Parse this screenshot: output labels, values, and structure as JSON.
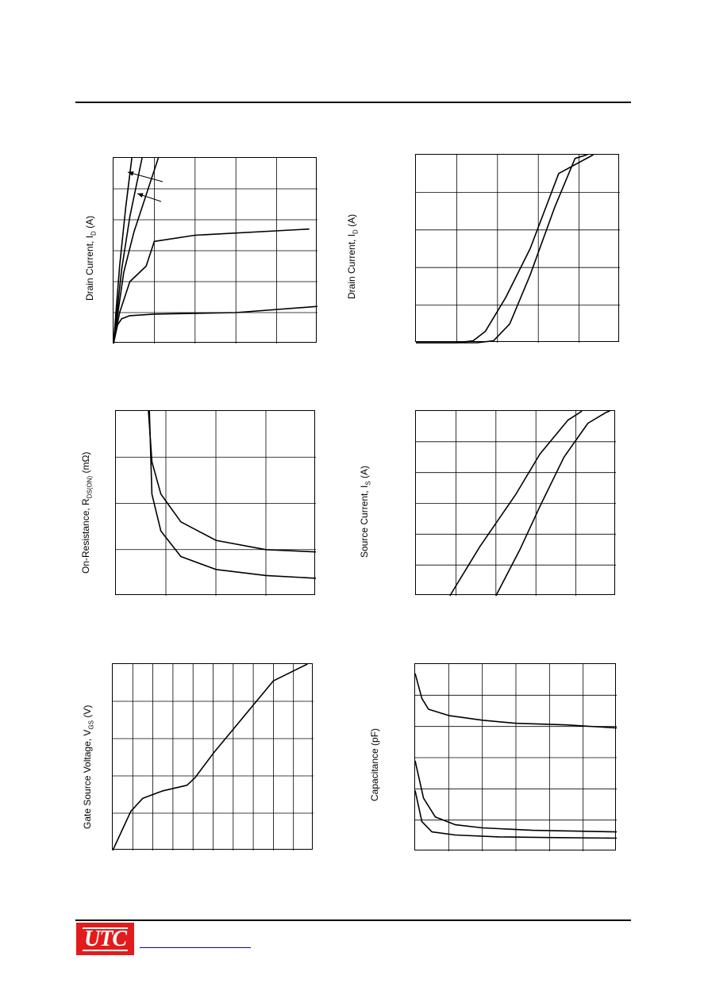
{
  "ylabels": {
    "p1": {
      "main": "Drain Current, I",
      "sub": "D",
      "tail": " (A)"
    },
    "p2": {
      "main": "Drain Current, I",
      "sub": "D",
      "tail": " (A)"
    },
    "p3": {
      "main": "On-Resistance, R",
      "sub": "DS(ON)",
      "tail": " (mΩ)"
    },
    "p4": {
      "main": "Source Current, I",
      "sub": "S",
      "tail": " (A)"
    },
    "p5": {
      "main": "Gate Source Voltage, V",
      "sub": "GS",
      "tail": " (V)"
    },
    "p6": {
      "main": "Capacitance (pF)",
      "sub": "",
      "tail": ""
    }
  },
  "chart_data": [
    {
      "type": "line",
      "ylabel": "Drain Current, ID (A)",
      "xlim": [
        0,
        5
      ],
      "ylim": [
        0,
        6
      ],
      "grid": true,
      "series": [
        {
          "points": [
            [
              0,
              0
            ],
            [
              0.1,
              0.6
            ],
            [
              0.2,
              0.8
            ],
            [
              0.4,
              0.9
            ],
            [
              1,
              0.95
            ],
            [
              3,
              1.0
            ],
            [
              5,
              1.2
            ]
          ]
        },
        {
          "points": [
            [
              0,
              0
            ],
            [
              0.15,
              1.0
            ],
            [
              0.4,
              2.0
            ],
            [
              0.8,
              2.5
            ],
            [
              1,
              3.3
            ],
            [
              2,
              3.5
            ],
            [
              4.8,
              3.7
            ]
          ]
        },
        {
          "points": [
            [
              0,
              0
            ],
            [
              0.25,
              2.3
            ],
            [
              0.5,
              3.6
            ],
            [
              0.8,
              4.8
            ],
            [
              1.1,
              6.0
            ]
          ]
        },
        {
          "points": [
            [
              0,
              0
            ],
            [
              0.2,
              2.4
            ],
            [
              0.4,
              4.1
            ],
            [
              0.7,
              6.0
            ]
          ]
        },
        {
          "points": [
            [
              0,
              0
            ],
            [
              0.15,
              2.5
            ],
            [
              0.3,
              4.4
            ],
            [
              0.45,
              6.0
            ]
          ]
        }
      ]
    },
    {
      "type": "line",
      "ylabel": "Drain Current, ID (A)",
      "xlim": [
        0,
        5
      ],
      "ylim": [
        0,
        5
      ],
      "grid": true,
      "series": [
        {
          "points": [
            [
              0,
              0
            ],
            [
              1,
              0
            ],
            [
              1.4,
              0.05
            ],
            [
              1.7,
              0.3
            ],
            [
              2.2,
              1.2
            ],
            [
              2.8,
              2.5
            ],
            [
              3.5,
              4.5
            ],
            [
              4.35,
              5.0
            ]
          ]
        },
        {
          "points": [
            [
              0,
              0
            ],
            [
              1.5,
              0
            ],
            [
              1.9,
              0.05
            ],
            [
              2.3,
              0.5
            ],
            [
              2.8,
              1.8
            ],
            [
              3.4,
              3.6
            ],
            [
              3.9,
              4.9
            ],
            [
              4.2,
              5.0
            ]
          ]
        }
      ]
    },
    {
      "type": "line",
      "ylabel": "On-Resistance, RDS(ON) (mΩ)",
      "xlim": [
        0,
        4
      ],
      "ylim": [
        0,
        4
      ],
      "grid": true,
      "series": [
        {
          "points": [
            [
              0.65,
              4.0
            ],
            [
              0.72,
              2.9
            ],
            [
              0.9,
              2.2
            ],
            [
              1.3,
              1.6
            ],
            [
              2,
              1.2
            ],
            [
              3,
              1.0
            ],
            [
              4,
              0.95
            ]
          ]
        },
        {
          "points": [
            [
              0.67,
              4.0
            ],
            [
              0.72,
              2.2
            ],
            [
              0.9,
              1.4
            ],
            [
              1.3,
              0.85
            ],
            [
              2,
              0.57
            ],
            [
              3,
              0.44
            ],
            [
              4,
              0.38
            ]
          ]
        }
      ]
    },
    {
      "type": "line",
      "ylabel": "Source Current, IS (A)",
      "xlim": [
        0,
        5
      ],
      "ylim": [
        0,
        6
      ],
      "grid": true,
      "series": [
        {
          "points": [
            [
              0.85,
              0
            ],
            [
              1.6,
              1.6
            ],
            [
              2.5,
              3.3
            ],
            [
              3.1,
              4.6
            ],
            [
              3.8,
              5.7
            ],
            [
              4.1,
              5.95
            ],
            [
              4.15,
              6.0
            ]
          ]
        },
        {
          "points": [
            [
              2.0,
              0
            ],
            [
              2.6,
              1.5
            ],
            [
              3.1,
              2.9
            ],
            [
              3.7,
              4.5
            ],
            [
              4.3,
              5.6
            ],
            [
              4.75,
              5.95
            ],
            [
              4.85,
              6.0
            ]
          ]
        }
      ]
    },
    {
      "type": "line",
      "ylabel": "Gate Source Voltage, VGS (V)",
      "xlim": [
        0,
        10
      ],
      "ylim": [
        0,
        5
      ],
      "grid": true,
      "series": [
        {
          "points": [
            [
              0,
              0
            ],
            [
              0.9,
              1.05
            ],
            [
              1.5,
              1.4
            ],
            [
              2.5,
              1.6
            ],
            [
              3.7,
              1.75
            ],
            [
              4.1,
              1.95
            ],
            [
              5,
              2.6
            ],
            [
              6,
              3.25
            ],
            [
              7,
              3.9
            ],
            [
              8,
              4.55
            ],
            [
              9.7,
              5.0
            ]
          ]
        }
      ]
    },
    {
      "type": "line",
      "ylabel": "Capacitance (pF)",
      "xlim": [
        0,
        6
      ],
      "ylim": [
        0,
        6
      ],
      "grid": true,
      "series": [
        {
          "points": [
            [
              0,
              5.7
            ],
            [
              0.2,
              4.9
            ],
            [
              0.4,
              4.55
            ],
            [
              1,
              4.35
            ],
            [
              2,
              4.2
            ],
            [
              3,
              4.1
            ],
            [
              4.5,
              4.05
            ],
            [
              6,
              3.95
            ]
          ]
        },
        {
          "points": [
            [
              0,
              2.9
            ],
            [
              0.25,
              1.7
            ],
            [
              0.6,
              1.1
            ],
            [
              1.2,
              0.85
            ],
            [
              2,
              0.75
            ],
            [
              3.5,
              0.67
            ],
            [
              6,
              0.62
            ]
          ]
        },
        {
          "points": [
            [
              0,
              1.95
            ],
            [
              0.2,
              0.95
            ],
            [
              0.5,
              0.62
            ],
            [
              1.2,
              0.52
            ],
            [
              2.5,
              0.46
            ],
            [
              4,
              0.44
            ],
            [
              6,
              0.42
            ]
          ]
        }
      ]
    }
  ]
}
